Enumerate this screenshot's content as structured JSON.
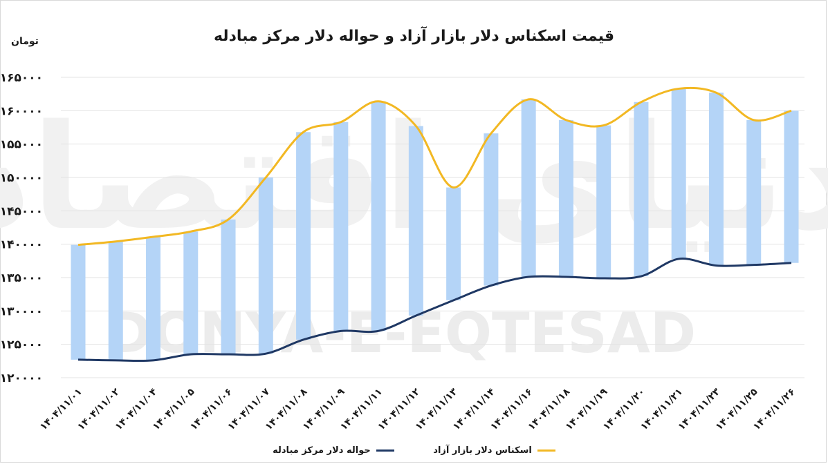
{
  "title": "قیمت اسکناس دلار بازار آزاد و حواله دلار مرکز مبادله",
  "unit_label": "تومان",
  "watermark": {
    "latin": "DONYA-E-EQTESAD",
    "persian": "دنیای اقتصاد"
  },
  "colors": {
    "free_market": "#F2B823",
    "exchange_center": "#1F3864",
    "band": "#B4D4F7",
    "grid": "#e3e3e3"
  },
  "legend": {
    "free_market": "اسکناس دلار بازار آزاد",
    "exchange_center": "حواله دلار مرکز مبادله"
  },
  "chart_data": {
    "type": "line",
    "categories": [
      "۱۴۰۴/۱۱/۰۱",
      "۱۴۰۴/۱۱/۰۲",
      "۱۴۰۴/۱۱/۰۴",
      "۱۴۰۴/۱۱/۰۵",
      "۱۴۰۴/۱۱/۰۶",
      "۱۴۰۴/۱۱/۰۷",
      "۱۴۰۴/۱۱/۰۸",
      "۱۴۰۴/۱۱/۰۹",
      "۱۴۰۴/۱۱/۱۱",
      "۱۴۰۴/۱۱/۱۲",
      "۱۴۰۴/۱۱/۱۳",
      "۱۴۰۴/۱۱/۱۴",
      "۱۴۰۴/۱۱/۱۶",
      "۱۴۰۴/۱۱/۱۸",
      "۱۴۰۴/۱۱/۱۹",
      "۱۴۰۴/۱۱/۲۰",
      "۱۴۰۴/۱۱/۲۱",
      "۱۴۰۴/۱۱/۲۳",
      "۱۴۰۴/۱۱/۲۵",
      "۱۴۰۴/۱۱/۲۶"
    ],
    "series": [
      {
        "name": "اسکناس دلار بازار آزاد",
        "color": "#F2B823",
        "values": [
          139900,
          140400,
          141100,
          141900,
          143700,
          150000,
          156800,
          158300,
          161400,
          157700,
          148500,
          156600,
          161700,
          158600,
          157800,
          161300,
          163300,
          162700,
          158600,
          160000
        ]
      },
      {
        "name": "حواله دلار مرکز مبادله",
        "color": "#1F3864",
        "values": [
          122700,
          122600,
          122600,
          123500,
          123500,
          123600,
          125700,
          127000,
          127000,
          129300,
          131600,
          133800,
          135100,
          135100,
          134900,
          135200,
          137800,
          136800,
          136900,
          137200
        ]
      }
    ],
    "band": "range between the two series",
    "ylim": [
      120000,
      165000
    ],
    "yticks": [
      "۱۲۰۰۰۰",
      "۱۲۵۰۰۰",
      "۱۳۰۰۰۰",
      "۱۳۵۰۰۰",
      "۱۴۰۰۰۰",
      "۱۴۵۰۰۰",
      "۱۵۰۰۰۰",
      "۱۵۵۰۰۰",
      "۱۶۰۰۰۰",
      "۱۶۵۰۰۰"
    ],
    "ytick_values": [
      120000,
      125000,
      130000,
      135000,
      140000,
      145000,
      150000,
      155000,
      160000,
      165000
    ],
    "grid": true,
    "legend_position": "bottom"
  }
}
